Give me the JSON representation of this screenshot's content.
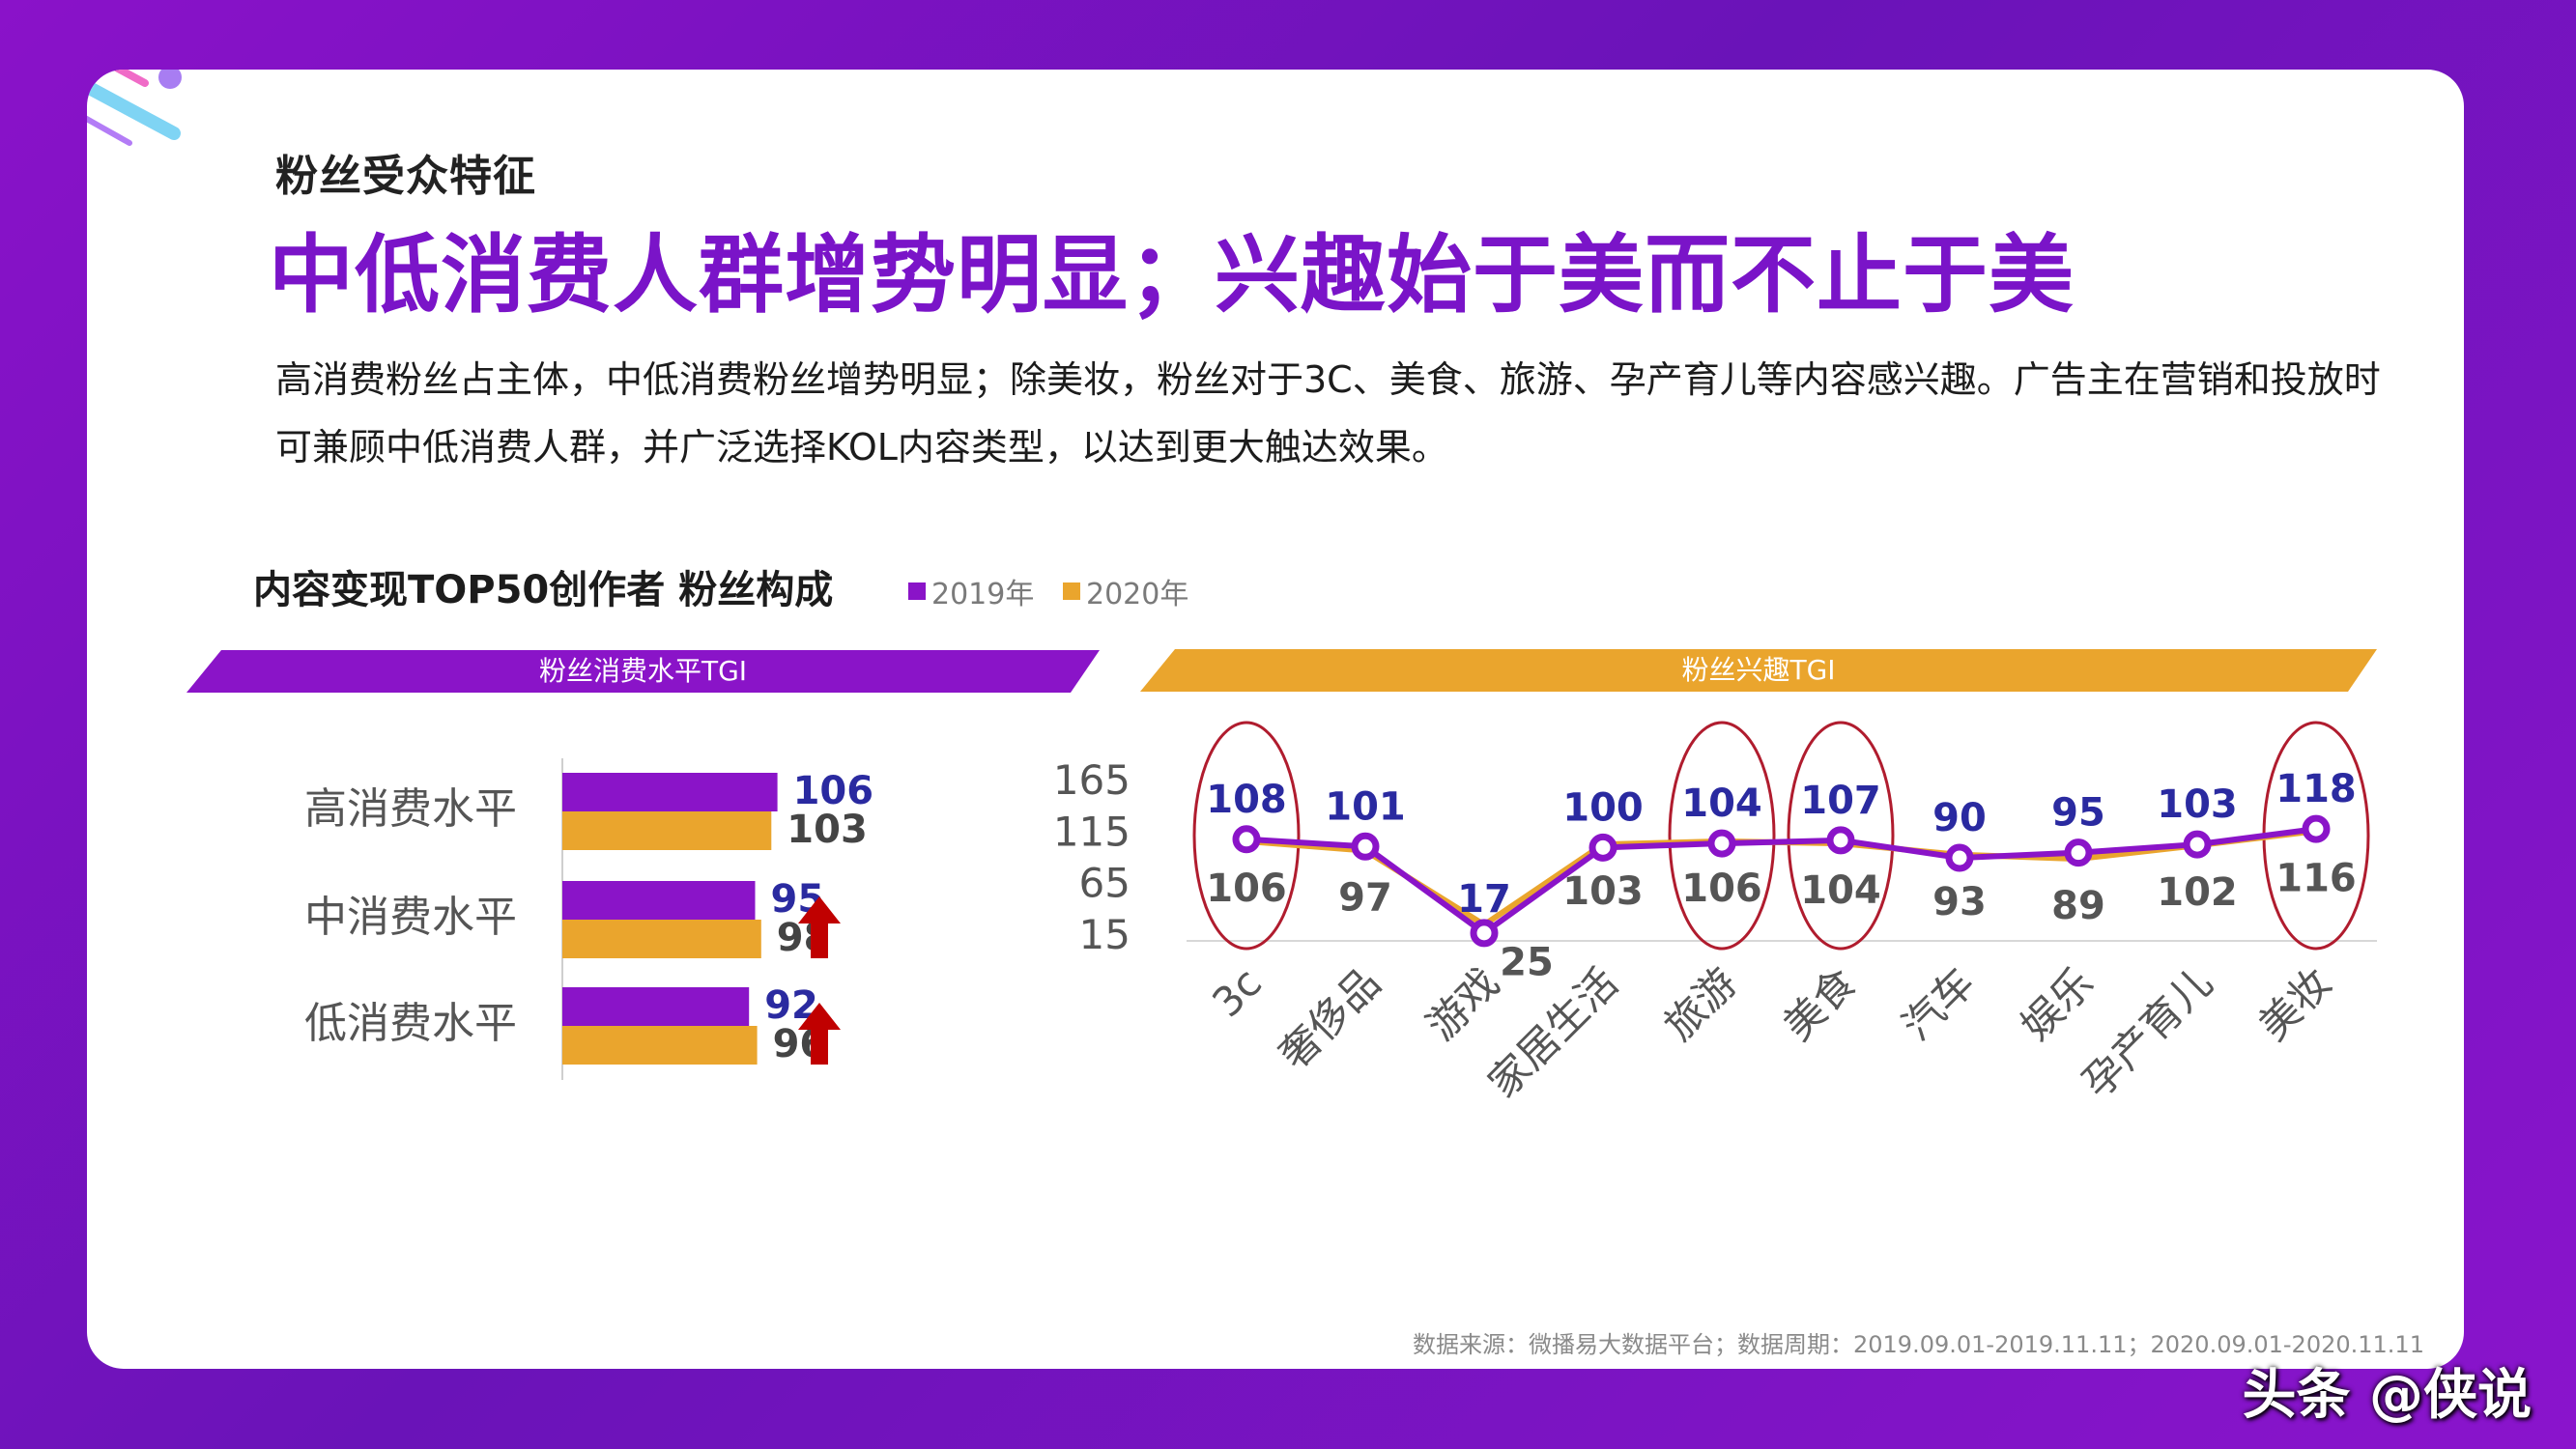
{
  "page": {
    "section_title": "粉丝受众特征",
    "headline": "中低消费人群增势明显；兴趣始于美而不止于美",
    "description": "高消费粉丝占主体，中低消费粉丝增势明显；除美妆，粉丝对于3C、美食、旅游、孕产育儿等内容感兴趣。广告主在营销和投放时可兼顾中低消费人群，并广泛选择KOL内容类型，以达到更大触达效果。",
    "chart_title": "内容变现TOP50创作者 粉丝构成",
    "legend_2019": "2019年",
    "legend_2020": "2020年",
    "banner_left": "粉丝消费水平TGI",
    "banner_right": "粉丝兴趣TGI",
    "source": "数据来源：微播易大数据平台；数据周期：2019.09.01-2019.11.11；2020.09.01-2020.11.11",
    "watermark": "头条 @侠说",
    "colors": {
      "purple": "#8a14c8",
      "orange": "#eaa52d",
      "up_arrow": "#c00000",
      "circle": "#b01c2e"
    }
  },
  "chart_data": [
    {
      "type": "bar",
      "orientation": "horizontal",
      "title": "粉丝消费水平TGI",
      "categories": [
        "高消费水平",
        "中消费水平",
        "低消费水平"
      ],
      "series": [
        {
          "name": "2019年",
          "values": [
            106,
            95,
            92
          ],
          "color": "#8a14c8"
        },
        {
          "name": "2020年",
          "values": [
            103,
            98,
            96
          ],
          "color": "#eaa52d"
        }
      ],
      "up_arrow_categories": [
        "中消费水平",
        "低消费水平"
      ]
    },
    {
      "type": "line",
      "title": "粉丝兴趣TGI",
      "categories": [
        "3c",
        "奢侈品",
        "游戏",
        "家居生活",
        "旅游",
        "美食",
        "汽车",
        "娱乐",
        "孕产育儿",
        "美妆"
      ],
      "y_ticks": [
        165,
        115,
        65,
        15
      ],
      "ylim": [
        15,
        165
      ],
      "series": [
        {
          "name": "2019年",
          "values": [
            108,
            101,
            17,
            100,
            104,
            107,
            90,
            95,
            103,
            118
          ],
          "color": "#8a14c8"
        },
        {
          "name": "2020年",
          "values": [
            106,
            97,
            25,
            103,
            106,
            104,
            93,
            89,
            102,
            116
          ],
          "color": "#eaa52d"
        }
      ],
      "highlighted_categories": [
        "3c",
        "旅游",
        "美食",
        "美妆"
      ]
    }
  ]
}
